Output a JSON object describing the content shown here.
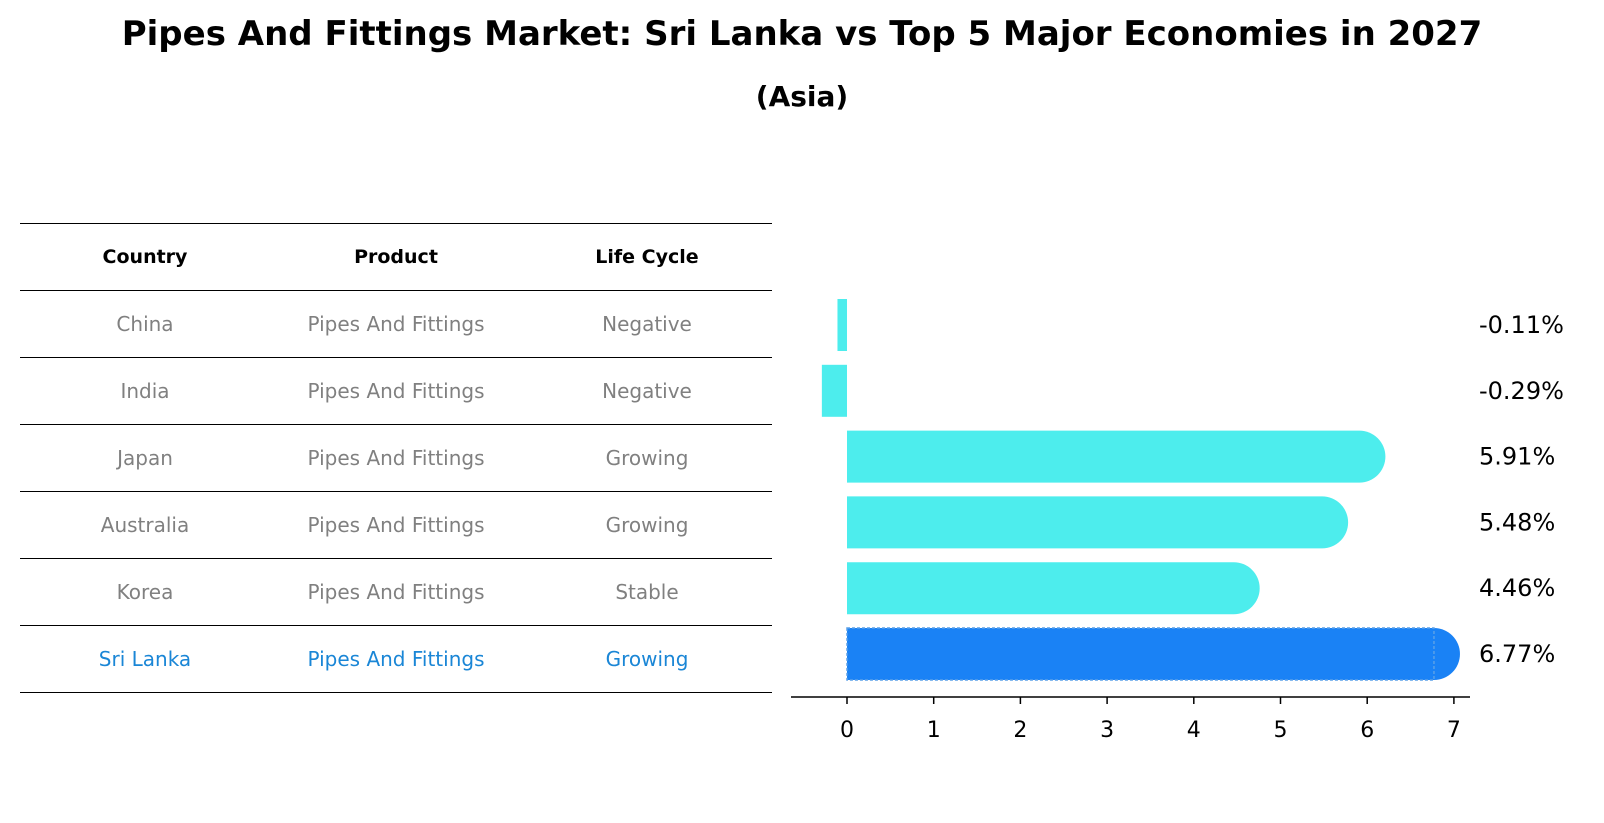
{
  "title": "Pipes And Fittings Market: Sri Lanka vs Top 5 Major Economies in 2027",
  "subtitle": "(Asia)",
  "table": {
    "headers": [
      "Country",
      "Product",
      "Life Cycle"
    ],
    "rows": [
      [
        "China",
        "Pipes And Fittings",
        "Negative"
      ],
      [
        "India",
        "Pipes And Fittings",
        "Negative"
      ],
      [
        "Japan",
        "Pipes And Fittings",
        "Growing"
      ],
      [
        "Australia",
        "Pipes And Fittings",
        "Growing"
      ],
      [
        "Korea",
        "Pipes And Fittings",
        "Stable"
      ],
      [
        "Sri Lanka",
        "Pipes And Fittings",
        "Growing"
      ]
    ]
  },
  "colors": {
    "bar": "#4deded",
    "highlight": "#1a82f5",
    "highlight_text": "#1a86d6"
  },
  "chart_data": {
    "type": "bar",
    "orientation": "horizontal",
    "categories": [
      "China",
      "India",
      "Japan",
      "Australia",
      "Korea",
      "Sri Lanka"
    ],
    "values": [
      -0.11,
      -0.29,
      5.91,
      5.48,
      4.46,
      6.77
    ],
    "labels": [
      "-0.11%",
      "-0.29%",
      "5.91%",
      "5.48%",
      "4.46%",
      "6.77%"
    ],
    "highlight": "Sri Lanka",
    "xlim": [
      -0.65,
      7.15
    ],
    "xticks": [
      0,
      1,
      2,
      3,
      4,
      5,
      6,
      7
    ]
  }
}
